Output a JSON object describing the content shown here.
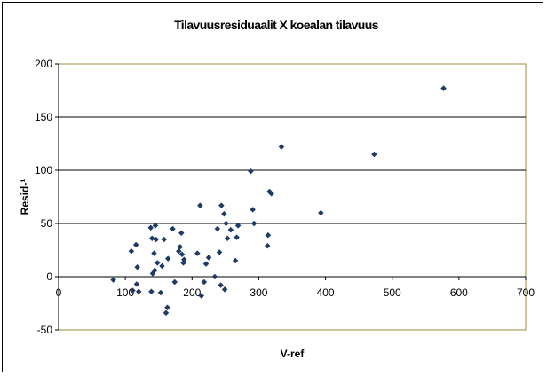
{
  "chart_data": {
    "type": "scatter",
    "title": "Tilavuusresiduaalit X koealan tilavuus",
    "xlabel": "V-ref",
    "ylabel": "Resid-¹",
    "xlim": [
      0,
      700
    ],
    "ylim": [
      -50,
      200
    ],
    "x_ticks": [
      "0",
      "100",
      "200",
      "300",
      "400",
      "500",
      "600",
      "700"
    ],
    "y_ticks": [
      "-50",
      "0",
      "50",
      "100",
      "150",
      "200"
    ],
    "grid": "horizontal major gridlines",
    "legend": "none",
    "plot_border_color": "#9c8a3c",
    "marker_color": "#1f3a66",
    "series": [
      {
        "points": [
          [
            82,
            -3
          ],
          [
            109,
            24
          ],
          [
            111,
            -13
          ],
          [
            116,
            30
          ],
          [
            117,
            -7
          ],
          [
            118,
            9
          ],
          [
            120,
            -14
          ],
          [
            138,
            46
          ],
          [
            139,
            -14
          ],
          [
            140,
            36
          ],
          [
            141,
            3
          ],
          [
            143,
            22
          ],
          [
            144,
            6
          ],
          [
            145,
            48
          ],
          [
            146,
            35
          ],
          [
            148,
            13
          ],
          [
            153,
            -15
          ],
          [
            155,
            10
          ],
          [
            158,
            35
          ],
          [
            161,
            -34
          ],
          [
            163,
            -29
          ],
          [
            164,
            17
          ],
          [
            171,
            45
          ],
          [
            174,
            -5
          ],
          [
            180,
            24
          ],
          [
            182,
            28
          ],
          [
            184,
            41
          ],
          [
            185,
            21
          ],
          [
            187,
            13
          ],
          [
            188,
            16
          ],
          [
            208,
            22
          ],
          [
            212,
            67
          ],
          [
            214,
            -18
          ],
          [
            218,
            -5
          ],
          [
            221,
            12
          ],
          [
            225,
            18
          ],
          [
            234,
            0
          ],
          [
            238,
            45
          ],
          [
            241,
            23
          ],
          [
            243,
            -8
          ],
          [
            244,
            67
          ],
          [
            248,
            59
          ],
          [
            249,
            -12
          ],
          [
            251,
            50
          ],
          [
            253,
            36
          ],
          [
            258,
            44
          ],
          [
            265,
            15
          ],
          [
            267,
            37
          ],
          [
            269,
            48
          ],
          [
            288,
            99
          ],
          [
            291,
            63
          ],
          [
            293,
            50
          ],
          [
            313,
            29
          ],
          [
            314,
            39
          ],
          [
            316,
            80
          ],
          [
            319,
            78
          ],
          [
            334,
            122
          ],
          [
            393,
            60
          ],
          [
            473,
            115
          ],
          [
            577,
            177
          ]
        ]
      }
    ]
  }
}
